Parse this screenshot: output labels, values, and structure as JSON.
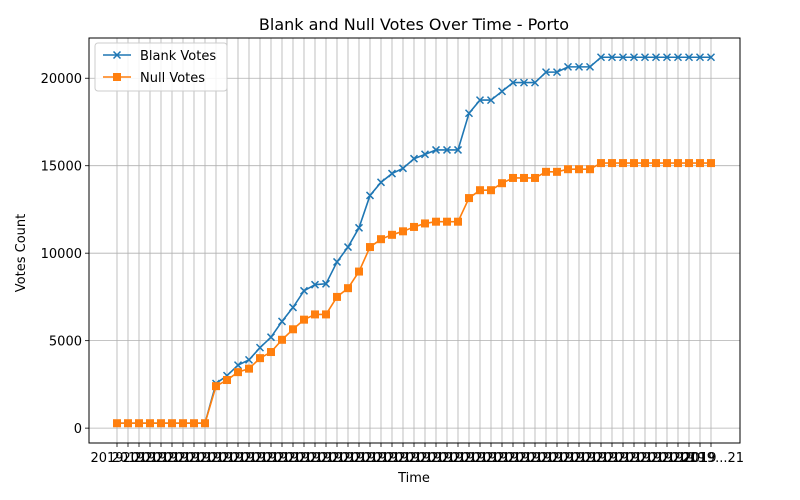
{
  "chart_data": {
    "type": "line",
    "title": "Blank and Null Votes Over Time - Porto",
    "xlabel": "Time",
    "ylabel": "Votes Count",
    "ylim": [
      -850,
      22300
    ],
    "yticks": [
      0,
      5000,
      10000,
      15000,
      20000
    ],
    "grid": true,
    "legend_position": "upper-left",
    "x_tick_labels_overlapping": true,
    "x_first_tick_label": "2019",
    "x_last_tick_label": "2019...21",
    "series": [
      {
        "name": "Blank Votes",
        "color": "#1f77b4",
        "marker": "x",
        "values": [
          280,
          280,
          280,
          280,
          280,
          280,
          280,
          280,
          280,
          2550,
          3000,
          3600,
          3900,
          4600,
          5200,
          6100,
          6900,
          7850,
          8200,
          8250,
          9500,
          10350,
          11450,
          13300,
          14050,
          14550,
          14850,
          15400,
          15650,
          15900,
          15900,
          15900,
          18000,
          18750,
          18750,
          19250,
          19750,
          19750,
          19750,
          20350,
          20350,
          20650,
          20650,
          20650,
          21200,
          21200,
          21200,
          21200,
          21200,
          21200,
          21200,
          21200,
          21200,
          21200,
          21200
        ]
      },
      {
        "name": "Null Votes",
        "color": "#ff7f0e",
        "marker": "square",
        "values": [
          280,
          280,
          280,
          280,
          280,
          280,
          280,
          280,
          280,
          2400,
          2750,
          3200,
          3400,
          4000,
          4350,
          5050,
          5650,
          6200,
          6500,
          6500,
          7500,
          8000,
          8950,
          10350,
          10800,
          11050,
          11250,
          11500,
          11700,
          11800,
          11800,
          11800,
          13150,
          13600,
          13600,
          14000,
          14300,
          14300,
          14300,
          14650,
          14650,
          14800,
          14800,
          14800,
          15150,
          15150,
          15150,
          15150,
          15150,
          15150,
          15150,
          15150,
          15150,
          15150,
          15150
        ]
      }
    ]
  }
}
